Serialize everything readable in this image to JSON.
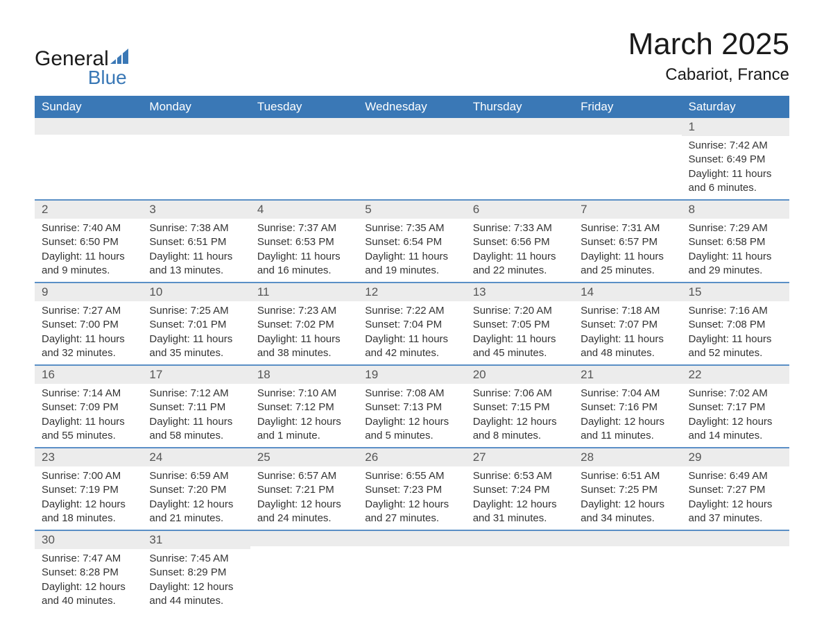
{
  "logo": {
    "text1": "General",
    "text2": "Blue",
    "accent_color": "#3a78b6"
  },
  "title": "March 2025",
  "location": "Cabariot, France",
  "colors": {
    "header_bg": "#3a78b6",
    "header_text": "#ffffff",
    "daynum_bg": "#ececec",
    "row_border": "#5a8fc6",
    "body_text": "#333333"
  },
  "weekdays": [
    "Sunday",
    "Monday",
    "Tuesday",
    "Wednesday",
    "Thursday",
    "Friday",
    "Saturday"
  ],
  "weeks": [
    [
      {
        "n": "",
        "sr": "",
        "ss": "",
        "dl": ""
      },
      {
        "n": "",
        "sr": "",
        "ss": "",
        "dl": ""
      },
      {
        "n": "",
        "sr": "",
        "ss": "",
        "dl": ""
      },
      {
        "n": "",
        "sr": "",
        "ss": "",
        "dl": ""
      },
      {
        "n": "",
        "sr": "",
        "ss": "",
        "dl": ""
      },
      {
        "n": "",
        "sr": "",
        "ss": "",
        "dl": ""
      },
      {
        "n": "1",
        "sr": "Sunrise: 7:42 AM",
        "ss": "Sunset: 6:49 PM",
        "dl": "Daylight: 11 hours and 6 minutes."
      }
    ],
    [
      {
        "n": "2",
        "sr": "Sunrise: 7:40 AM",
        "ss": "Sunset: 6:50 PM",
        "dl": "Daylight: 11 hours and 9 minutes."
      },
      {
        "n": "3",
        "sr": "Sunrise: 7:38 AM",
        "ss": "Sunset: 6:51 PM",
        "dl": "Daylight: 11 hours and 13 minutes."
      },
      {
        "n": "4",
        "sr": "Sunrise: 7:37 AM",
        "ss": "Sunset: 6:53 PM",
        "dl": "Daylight: 11 hours and 16 minutes."
      },
      {
        "n": "5",
        "sr": "Sunrise: 7:35 AM",
        "ss": "Sunset: 6:54 PM",
        "dl": "Daylight: 11 hours and 19 minutes."
      },
      {
        "n": "6",
        "sr": "Sunrise: 7:33 AM",
        "ss": "Sunset: 6:56 PM",
        "dl": "Daylight: 11 hours and 22 minutes."
      },
      {
        "n": "7",
        "sr": "Sunrise: 7:31 AM",
        "ss": "Sunset: 6:57 PM",
        "dl": "Daylight: 11 hours and 25 minutes."
      },
      {
        "n": "8",
        "sr": "Sunrise: 7:29 AM",
        "ss": "Sunset: 6:58 PM",
        "dl": "Daylight: 11 hours and 29 minutes."
      }
    ],
    [
      {
        "n": "9",
        "sr": "Sunrise: 7:27 AM",
        "ss": "Sunset: 7:00 PM",
        "dl": "Daylight: 11 hours and 32 minutes."
      },
      {
        "n": "10",
        "sr": "Sunrise: 7:25 AM",
        "ss": "Sunset: 7:01 PM",
        "dl": "Daylight: 11 hours and 35 minutes."
      },
      {
        "n": "11",
        "sr": "Sunrise: 7:23 AM",
        "ss": "Sunset: 7:02 PM",
        "dl": "Daylight: 11 hours and 38 minutes."
      },
      {
        "n": "12",
        "sr": "Sunrise: 7:22 AM",
        "ss": "Sunset: 7:04 PM",
        "dl": "Daylight: 11 hours and 42 minutes."
      },
      {
        "n": "13",
        "sr": "Sunrise: 7:20 AM",
        "ss": "Sunset: 7:05 PM",
        "dl": "Daylight: 11 hours and 45 minutes."
      },
      {
        "n": "14",
        "sr": "Sunrise: 7:18 AM",
        "ss": "Sunset: 7:07 PM",
        "dl": "Daylight: 11 hours and 48 minutes."
      },
      {
        "n": "15",
        "sr": "Sunrise: 7:16 AM",
        "ss": "Sunset: 7:08 PM",
        "dl": "Daylight: 11 hours and 52 minutes."
      }
    ],
    [
      {
        "n": "16",
        "sr": "Sunrise: 7:14 AM",
        "ss": "Sunset: 7:09 PM",
        "dl": "Daylight: 11 hours and 55 minutes."
      },
      {
        "n": "17",
        "sr": "Sunrise: 7:12 AM",
        "ss": "Sunset: 7:11 PM",
        "dl": "Daylight: 11 hours and 58 minutes."
      },
      {
        "n": "18",
        "sr": "Sunrise: 7:10 AM",
        "ss": "Sunset: 7:12 PM",
        "dl": "Daylight: 12 hours and 1 minute."
      },
      {
        "n": "19",
        "sr": "Sunrise: 7:08 AM",
        "ss": "Sunset: 7:13 PM",
        "dl": "Daylight: 12 hours and 5 minutes."
      },
      {
        "n": "20",
        "sr": "Sunrise: 7:06 AM",
        "ss": "Sunset: 7:15 PM",
        "dl": "Daylight: 12 hours and 8 minutes."
      },
      {
        "n": "21",
        "sr": "Sunrise: 7:04 AM",
        "ss": "Sunset: 7:16 PM",
        "dl": "Daylight: 12 hours and 11 minutes."
      },
      {
        "n": "22",
        "sr": "Sunrise: 7:02 AM",
        "ss": "Sunset: 7:17 PM",
        "dl": "Daylight: 12 hours and 14 minutes."
      }
    ],
    [
      {
        "n": "23",
        "sr": "Sunrise: 7:00 AM",
        "ss": "Sunset: 7:19 PM",
        "dl": "Daylight: 12 hours and 18 minutes."
      },
      {
        "n": "24",
        "sr": "Sunrise: 6:59 AM",
        "ss": "Sunset: 7:20 PM",
        "dl": "Daylight: 12 hours and 21 minutes."
      },
      {
        "n": "25",
        "sr": "Sunrise: 6:57 AM",
        "ss": "Sunset: 7:21 PM",
        "dl": "Daylight: 12 hours and 24 minutes."
      },
      {
        "n": "26",
        "sr": "Sunrise: 6:55 AM",
        "ss": "Sunset: 7:23 PM",
        "dl": "Daylight: 12 hours and 27 minutes."
      },
      {
        "n": "27",
        "sr": "Sunrise: 6:53 AM",
        "ss": "Sunset: 7:24 PM",
        "dl": "Daylight: 12 hours and 31 minutes."
      },
      {
        "n": "28",
        "sr": "Sunrise: 6:51 AM",
        "ss": "Sunset: 7:25 PM",
        "dl": "Daylight: 12 hours and 34 minutes."
      },
      {
        "n": "29",
        "sr": "Sunrise: 6:49 AM",
        "ss": "Sunset: 7:27 PM",
        "dl": "Daylight: 12 hours and 37 minutes."
      }
    ],
    [
      {
        "n": "30",
        "sr": "Sunrise: 7:47 AM",
        "ss": "Sunset: 8:28 PM",
        "dl": "Daylight: 12 hours and 40 minutes."
      },
      {
        "n": "31",
        "sr": "Sunrise: 7:45 AM",
        "ss": "Sunset: 8:29 PM",
        "dl": "Daylight: 12 hours and 44 minutes."
      },
      {
        "n": "",
        "sr": "",
        "ss": "",
        "dl": ""
      },
      {
        "n": "",
        "sr": "",
        "ss": "",
        "dl": ""
      },
      {
        "n": "",
        "sr": "",
        "ss": "",
        "dl": ""
      },
      {
        "n": "",
        "sr": "",
        "ss": "",
        "dl": ""
      },
      {
        "n": "",
        "sr": "",
        "ss": "",
        "dl": ""
      }
    ]
  ]
}
